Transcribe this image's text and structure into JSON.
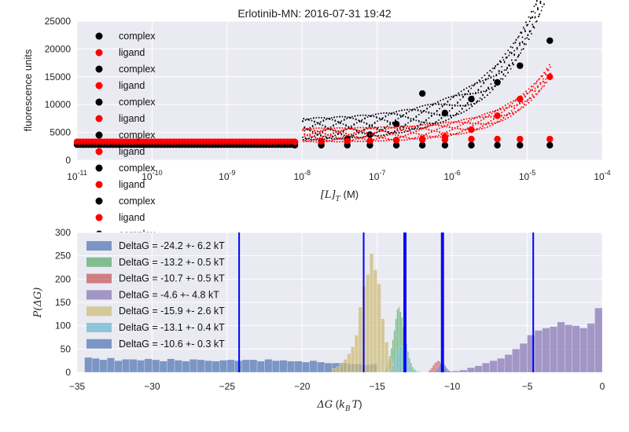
{
  "chart_data": [
    {
      "type": "scatter",
      "title": "Erlotinib-MN: 2016-07-31 19:42",
      "xlabel_math": "[L]_T",
      "xlabel_unit": "(M)",
      "ylabel": "fluorescence units",
      "xscale": "log",
      "xlim": [
        1e-11,
        0.0001
      ],
      "ylim": [
        0,
        25000
      ],
      "x_ticks": [
        {
          "value": 1e-11,
          "base": "10",
          "exp": "-11"
        },
        {
          "value": 1e-10,
          "base": "10",
          "exp": "-10"
        },
        {
          "value": 1e-09,
          "base": "10",
          "exp": "-9"
        },
        {
          "value": 1e-08,
          "base": "10",
          "exp": "-8"
        },
        {
          "value": 1e-07,
          "base": "10",
          "exp": "-7"
        },
        {
          "value": 1e-06,
          "base": "10",
          "exp": "-6"
        },
        {
          "value": 1e-05,
          "base": "10",
          "exp": "-5"
        },
        {
          "value": 0.0001,
          "base": "10",
          "exp": "-4"
        }
      ],
      "y_ticks": [
        {
          "value": 0,
          "label": "0"
        },
        {
          "value": 5000,
          "label": "5000"
        },
        {
          "value": 10000,
          "label": "10000"
        },
        {
          "value": 15000,
          "label": "15000"
        },
        {
          "value": 20000,
          "label": "20000"
        },
        {
          "value": 25000,
          "label": "25000"
        }
      ],
      "grid": true,
      "legend_position": "top-left",
      "colors": {
        "complex": "#000000",
        "ligand": "#ff0000"
      },
      "legend": [
        "complex",
        "ligand",
        "complex",
        "ligand",
        "complex",
        "ligand",
        "complex",
        "ligand",
        "complex",
        "ligand",
        "complex",
        "ligand",
        "complex"
      ],
      "x": [
        8e-09,
        1.8e-08,
        4e-08,
        8e-08,
        1.8e-07,
        4e-07,
        8e-07,
        1.8e-06,
        4e-06,
        8e-06,
        2e-05
      ],
      "series": [
        {
          "name": "complex",
          "values": [
            3200,
            3400,
            3800,
            4600,
            6500,
            12000,
            8500,
            11000,
            14000,
            17000,
            21500
          ]
        },
        {
          "name": "ligand",
          "values": [
            3100,
            3200,
            3300,
            3400,
            3600,
            3800,
            4200,
            5500,
            8000,
            11000,
            15000
          ]
        },
        {
          "name": "complex",
          "values": [
            2700,
            2700,
            2700,
            2700,
            2700,
            2700,
            2700,
            2700,
            2700,
            2700,
            2700
          ]
        },
        {
          "name": "ligand",
          "values": [
            3300,
            3400,
            3500,
            3500,
            3600,
            3700,
            3700,
            3800,
            3800,
            3800,
            3800
          ]
        }
      ]
    },
    {
      "type": "histogram",
      "xlabel_math": "ΔG (k_B T)",
      "ylabel_math": "P(ΔG)",
      "xlim": [
        -35,
        0
      ],
      "ylim": [
        0,
        300
      ],
      "x_ticks": [
        -35,
        -30,
        -25,
        -20,
        -15,
        -10,
        -5,
        0
      ],
      "y_ticks": [
        0,
        50,
        100,
        150,
        200,
        250,
        300
      ],
      "grid": true,
      "legend_position": "top-left",
      "series": [
        {
          "name": "DeltaG = -24.2 +- 6.2 kT",
          "color": "#4c72b0",
          "mean": -24.2,
          "bin_width": 0.5,
          "range": [
            -34.5,
            -15
          ],
          "values": [
            32,
            30,
            27,
            31,
            25,
            28,
            28,
            26,
            29,
            27,
            24,
            29,
            26,
            24,
            28,
            27,
            25,
            24,
            26,
            27,
            25,
            27,
            27,
            24,
            28,
            25,
            26,
            24,
            24,
            22,
            25,
            22,
            20,
            20,
            20,
            18,
            18,
            16,
            18
          ]
        },
        {
          "name": "DeltaG = -13.2 +- 0.5 kT",
          "color": "#55a868",
          "mean": -13.2,
          "bin_width": 0.1,
          "range": [
            -14.5,
            -12.0
          ],
          "values": [
            5,
            12,
            22,
            35,
            52,
            70,
            90,
            115,
            135,
            140,
            130,
            118,
            98,
            80,
            62,
            45,
            30,
            20,
            12,
            8,
            5,
            3,
            2,
            1,
            1
          ]
        },
        {
          "name": "DeltaG = -10.7 +- 0.5 kT",
          "color": "#c44e52",
          "mean": -10.7,
          "bin_width": 0.1,
          "range": [
            -11.6,
            -10.0
          ],
          "values": [
            3,
            6,
            10,
            15,
            20,
            22,
            25,
            24,
            20,
            14,
            10,
            7,
            5,
            3,
            2,
            1
          ]
        },
        {
          "name": "DeltaG = -4.6 +- 4.8 kT",
          "color": "#8172b2",
          "mean": -4.6,
          "bin_width": 0.5,
          "range": [
            -10,
            0
          ],
          "values": [
            3,
            5,
            10,
            14,
            20,
            25,
            30,
            38,
            50,
            62,
            80,
            90,
            95,
            98,
            108,
            102,
            100,
            95,
            105,
            138
          ]
        },
        {
          "name": "DeltaG = -15.9 +- 2.6 kT",
          "color": "#ccb974",
          "mean": -15.9,
          "bin_width": 0.25,
          "range": [
            -18,
            -12.5
          ],
          "values": [
            8,
            12,
            18,
            28,
            40,
            55,
            80,
            140,
            185,
            210,
            255,
            220,
            190,
            115,
            65,
            30,
            18,
            10,
            6,
            4,
            3,
            2
          ]
        },
        {
          "name": "DeltaG = -13.1 +- 0.4 kT",
          "color": "#64b5cd",
          "mean": -13.1,
          "bin_width": 0.1,
          "range": [
            -14.2,
            -12.2
          ],
          "values": [
            3,
            8,
            14,
            22,
            32,
            42,
            52,
            56,
            55,
            48,
            40,
            30,
            22,
            15,
            10,
            6,
            4,
            2,
            1,
            1
          ]
        },
        {
          "name": "DeltaG = -10.6 +- 0.3 kT",
          "color": "#4c72b0",
          "mean": -10.6,
          "bin_width": 0.1,
          "range": [
            -11.2,
            -10.0
          ],
          "values": [
            2,
            5,
            9,
            14,
            18,
            20,
            18,
            14,
            9,
            5,
            3,
            2
          ]
        }
      ],
      "mean_lines": {
        "color": "#0000ff",
        "values": [
          -24.2,
          -13.2,
          -10.7,
          -4.6,
          -15.9,
          -13.1,
          -10.6
        ]
      }
    }
  ]
}
